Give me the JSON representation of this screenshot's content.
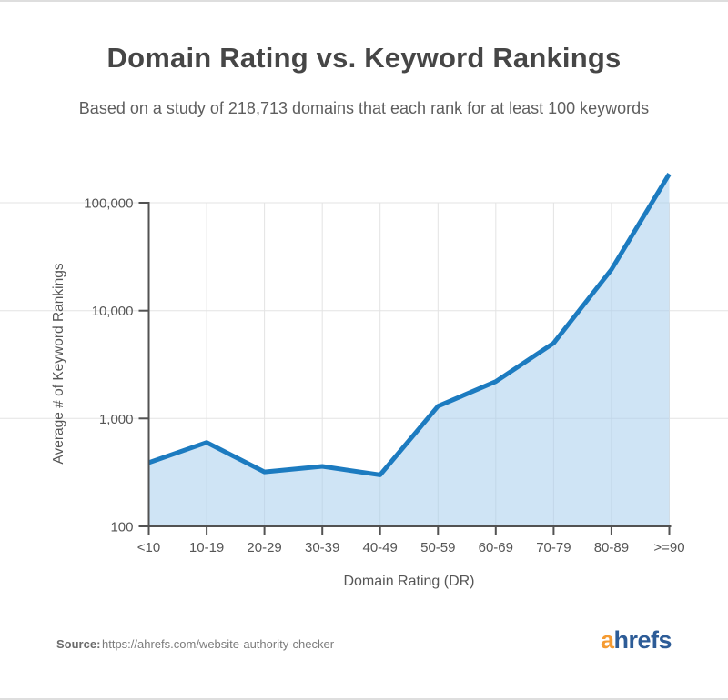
{
  "page": {
    "title": "Domain Rating vs. Keyword Rankings",
    "subtitle": "Based on a study of 218,713 domains that each rank for at least 100 keywords"
  },
  "chart_data": {
    "type": "area",
    "title": "Domain Rating vs. Keyword Rankings",
    "subtitle": "Based on a study of 218,713 domains that each rank for at least 100 keywords",
    "categories": [
      "<10",
      "10-19",
      "20-29",
      "30-39",
      "40-49",
      "50-59",
      "60-69",
      "70-79",
      "80-89",
      ">=90"
    ],
    "values": [
      390,
      600,
      320,
      360,
      300,
      1300,
      2200,
      5000,
      24000,
      185000
    ],
    "xlabel": "Domain Rating (DR)",
    "ylabel": "Average # of Keyword Rankings",
    "y_scale": "log",
    "y_tick_values": [
      100,
      1000,
      10000,
      100000
    ],
    "y_tick_labels": [
      "100",
      "1,000",
      "10,000",
      "100,000"
    ],
    "ylim": [
      100,
      200000
    ],
    "grid": true,
    "legend": "none",
    "line_color": "#1c7bc0",
    "fill_color": "#cfe4f5",
    "fill_rgba": "rgba(168,206,237,0.55)",
    "grid_color": "#e3e3e3",
    "axis_color": "#525252",
    "label_color": "#565656"
  },
  "footer": {
    "source_label": "Source:",
    "source_url": "https://ahrefs.com/website-authority-checker",
    "logo": {
      "first": "a",
      "rest": "hrefs",
      "orange": "#f59b32",
      "blue": "#2d5c97"
    }
  }
}
